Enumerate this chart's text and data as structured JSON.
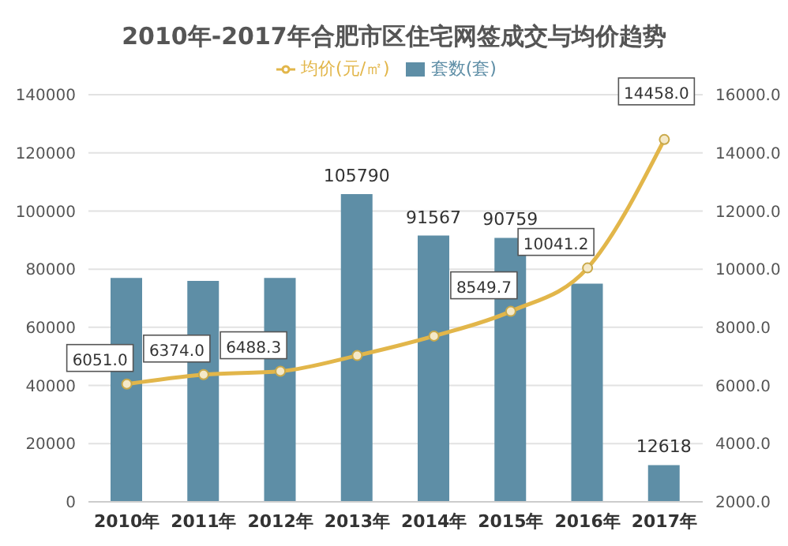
{
  "chart_data": {
    "type": "bar",
    "title": "2010年-2017年合肥市区住宅网签成交与均价趋势",
    "categories": [
      "2010年",
      "2011年",
      "2012年",
      "2013年",
      "2014年",
      "2015年",
      "2016年",
      "2017年"
    ],
    "series": [
      {
        "name": "套数(套)",
        "type": "bar",
        "color": "#5e8ea6",
        "values": [
          77000,
          76000,
          77000,
          105790,
          91567,
          90759,
          75000,
          12618
        ],
        "value_labels": [
          null,
          null,
          null,
          "105790",
          "91567",
          "90759",
          null,
          "12618"
        ]
      },
      {
        "name": "均价(元/㎡)",
        "type": "line",
        "axis": "y2",
        "color": "#e2b64a",
        "values": [
          6051.0,
          6374.0,
          6488.3,
          7030,
          7700,
          8549.7,
          10041.2,
          14458.0
        ],
        "value_labels": [
          "6051.0",
          "6374.0",
          "6488.3",
          null,
          null,
          "8549.7",
          "10041.2",
          "14458.0"
        ]
      }
    ],
    "ylim": [
      0,
      140000
    ],
    "yticks": [
      0,
      20000,
      40000,
      60000,
      80000,
      100000,
      120000,
      140000
    ],
    "y2lim": [
      2000,
      16000
    ],
    "y2ticks": [
      {
        "value": 2000,
        "label": "2000.0"
      },
      {
        "value": 4000,
        "label": "4000.0"
      },
      {
        "value": 6000,
        "label": "6000.0"
      },
      {
        "value": 8000,
        "label": "8000.0"
      },
      {
        "value": 10000,
        "label": "10000.0"
      },
      {
        "value": 12000,
        "label": "12000.0"
      },
      {
        "value": 14000,
        "label": "14000.0"
      },
      {
        "value": 16000,
        "label": "16000.0"
      }
    ],
    "grid": "y",
    "legend": "top",
    "marker": "circle"
  }
}
